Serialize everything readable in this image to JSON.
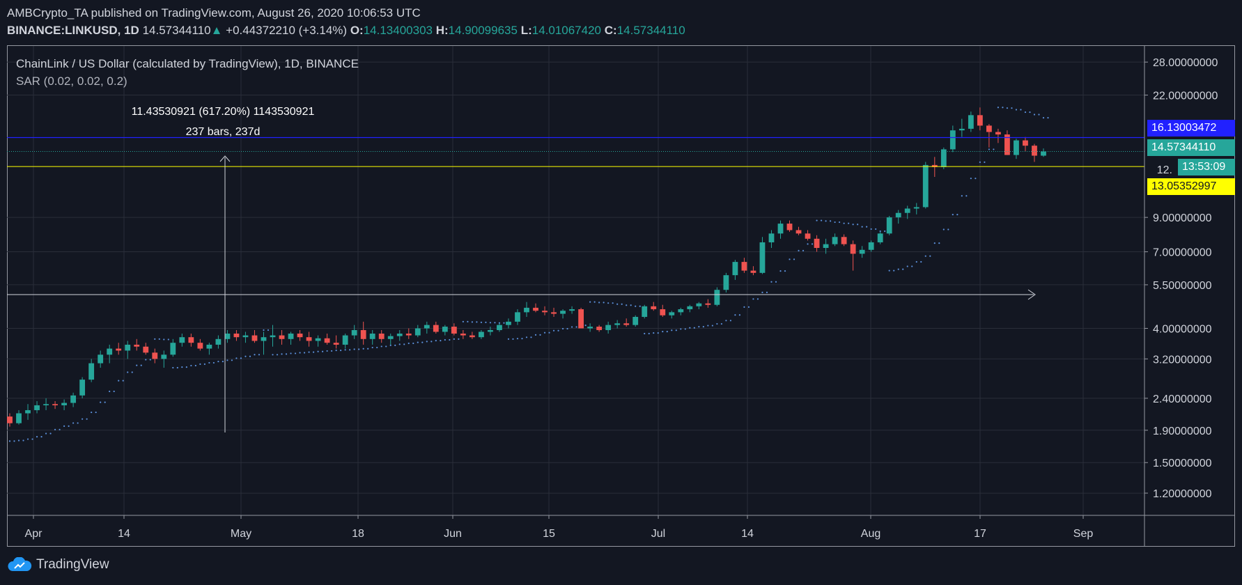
{
  "header": {
    "published": "AMBCrypto_TA published on TradingView.com, August 26, 2020 10:06:53 UTC",
    "symbol": "BINANCE:LINKUSD, 1D",
    "last": "14.57344110",
    "change": "+0.44372210 (+3.14%)",
    "o_label": "O:",
    "o": "14.13400303",
    "h_label": "H:",
    "h": "14.90099635",
    "l_label": "L:",
    "l": "14.01067420",
    "c_label": "C:",
    "c": "14.57344110"
  },
  "legend": {
    "title": "ChainLink / US Dollar (calculated by TradingView), 1D, BINANCE",
    "indicator": "SAR (0.02, 0.02, 0.2)"
  },
  "measure": {
    "line1": "11.43530921 (617.20%) 1143530921",
    "line2": "237 bars, 237d"
  },
  "badges": {
    "blue_line": "16.13003472",
    "last_price": "14.57344110",
    "countdown": "13:53:09",
    "partial": "12.",
    "yellow_line": "13.05352997"
  },
  "brand": "TradingView",
  "colors": {
    "up": "#26a69a",
    "down": "#ef5350",
    "blue": "#2121ff",
    "yellow": "#ffff00",
    "sar": "#5b8fd9"
  },
  "chart_data": {
    "type": "candlestick",
    "title": "ChainLink / US Dollar (calculated by TradingView), 1D, BINANCE",
    "y_scale": "log",
    "ylim": [
      1.02,
      31.5
    ],
    "y_ticks": [
      "28.00000000",
      "22.00000000",
      "9.00000000",
      "7.00000000",
      "5.50000000",
      "4.00000000",
      "3.20000000",
      "2.40000000",
      "1.90000000",
      "1.50000000",
      "1.20000000"
    ],
    "x_ticks": [
      "Apr",
      "14",
      "May",
      "18",
      "Jun",
      "15",
      "Jul",
      "14",
      "Aug",
      "17",
      "Sep"
    ],
    "horizontal_lines": [
      {
        "value": 16.13003472,
        "color": "blue"
      },
      {
        "value": 13.05352997,
        "color": "yellow"
      },
      {
        "value": 14.5734411,
        "color": "teal-dotted"
      }
    ],
    "candles_approx": [
      [
        2.1,
        2.15,
        1.95,
        2.0
      ],
      [
        2.0,
        2.2,
        1.98,
        2.15
      ],
      [
        2.15,
        2.3,
        2.05,
        2.2
      ],
      [
        2.2,
        2.35,
        2.15,
        2.28
      ],
      [
        2.28,
        2.4,
        2.2,
        2.3
      ],
      [
        2.3,
        2.35,
        2.22,
        2.28
      ],
      [
        2.28,
        2.38,
        2.2,
        2.32
      ],
      [
        2.32,
        2.5,
        2.25,
        2.45
      ],
      [
        2.45,
        2.8,
        2.4,
        2.75
      ],
      [
        2.75,
        3.2,
        2.7,
        3.1
      ],
      [
        3.1,
        3.4,
        3.0,
        3.3
      ],
      [
        3.3,
        3.55,
        3.1,
        3.45
      ],
      [
        3.45,
        3.6,
        3.3,
        3.4
      ],
      [
        3.4,
        3.65,
        3.2,
        3.55
      ],
      [
        3.55,
        3.7,
        3.4,
        3.5
      ],
      [
        3.5,
        3.6,
        3.3,
        3.35
      ],
      [
        3.35,
        3.45,
        3.1,
        3.2
      ],
      [
        3.2,
        3.4,
        3.0,
        3.3
      ],
      [
        3.3,
        3.7,
        3.25,
        3.6
      ],
      [
        3.6,
        3.85,
        3.5,
        3.75
      ],
      [
        3.75,
        3.85,
        3.5,
        3.6
      ],
      [
        3.6,
        3.7,
        3.4,
        3.45
      ],
      [
        3.45,
        3.6,
        3.3,
        3.55
      ],
      [
        3.55,
        3.8,
        3.45,
        3.7
      ],
      [
        3.7,
        3.95,
        3.6,
        3.85
      ],
      [
        3.85,
        3.95,
        3.65,
        3.75
      ],
      [
        3.75,
        3.9,
        3.6,
        3.8
      ],
      [
        3.8,
        3.95,
        3.6,
        3.65
      ],
      [
        3.65,
        3.9,
        3.3,
        3.75
      ],
      [
        3.75,
        4.1,
        3.5,
        3.8
      ],
      [
        3.8,
        3.95,
        3.55,
        3.7
      ],
      [
        3.7,
        3.9,
        3.55,
        3.85
      ],
      [
        3.85,
        3.95,
        3.65,
        3.75
      ],
      [
        3.75,
        3.9,
        3.5,
        3.65
      ],
      [
        3.65,
        3.8,
        3.5,
        3.72
      ],
      [
        3.72,
        3.85,
        3.55,
        3.6
      ],
      [
        3.6,
        3.8,
        3.45,
        3.55
      ],
      [
        3.55,
        3.85,
        3.45,
        3.8
      ],
      [
        3.8,
        4.1,
        3.7,
        3.95
      ],
      [
        3.95,
        4.2,
        3.55,
        3.7
      ],
      [
        3.7,
        3.95,
        3.55,
        3.85
      ],
      [
        3.85,
        3.95,
        3.6,
        3.7
      ],
      [
        3.7,
        3.85,
        3.55,
        3.78
      ],
      [
        3.78,
        3.95,
        3.65,
        3.85
      ],
      [
        3.85,
        4.0,
        3.7,
        3.8
      ],
      [
        3.8,
        4.1,
        3.75,
        4.0
      ],
      [
        4.0,
        4.2,
        3.85,
        4.1
      ],
      [
        4.1,
        4.2,
        3.85,
        3.9
      ],
      [
        3.9,
        4.1,
        3.8,
        4.05
      ],
      [
        4.05,
        4.15,
        3.8,
        3.85
      ],
      [
        3.85,
        3.95,
        3.7,
        3.8
      ],
      [
        3.8,
        3.9,
        3.7,
        3.75
      ],
      [
        3.75,
        3.95,
        3.7,
        3.9
      ],
      [
        3.9,
        4.05,
        3.8,
        3.95
      ],
      [
        3.95,
        4.15,
        3.9,
        4.1
      ],
      [
        4.1,
        4.3,
        4.0,
        4.2
      ],
      [
        4.2,
        4.6,
        4.1,
        4.5
      ],
      [
        4.5,
        4.85,
        4.35,
        4.65
      ],
      [
        4.65,
        4.8,
        4.5,
        4.55
      ],
      [
        4.55,
        4.7,
        4.4,
        4.5
      ],
      [
        4.5,
        4.65,
        4.35,
        4.45
      ],
      [
        4.45,
        4.6,
        4.3,
        4.55
      ],
      [
        4.55,
        4.7,
        4.45,
        4.6
      ],
      [
        4.6,
        4.65,
        4.1,
        4.0
      ],
      [
        4.0,
        4.15,
        3.9,
        4.05
      ],
      [
        4.05,
        4.1,
        3.9,
        3.95
      ],
      [
        3.95,
        4.2,
        3.85,
        4.1
      ],
      [
        4.1,
        4.25,
        4.0,
        4.15
      ],
      [
        4.15,
        4.3,
        4.05,
        4.1
      ],
      [
        4.1,
        4.4,
        4.05,
        4.35
      ],
      [
        4.35,
        4.75,
        4.3,
        4.7
      ],
      [
        4.7,
        4.85,
        4.55,
        4.6
      ],
      [
        4.6,
        4.75,
        4.35,
        4.4
      ],
      [
        4.4,
        4.55,
        4.3,
        4.5
      ],
      [
        4.5,
        4.65,
        4.4,
        4.6
      ],
      [
        4.6,
        4.75,
        4.5,
        4.7
      ],
      [
        4.7,
        4.85,
        4.6,
        4.8
      ],
      [
        4.8,
        4.95,
        4.65,
        4.75
      ],
      [
        4.75,
        5.4,
        4.7,
        5.3
      ],
      [
        5.3,
        6.0,
        5.2,
        5.9
      ],
      [
        5.9,
        6.6,
        5.7,
        6.5
      ],
      [
        6.5,
        6.7,
        6.0,
        6.1
      ],
      [
        6.1,
        6.3,
        5.9,
        6.0
      ],
      [
        6.0,
        7.8,
        5.95,
        7.5
      ],
      [
        7.5,
        8.2,
        7.2,
        8.0
      ],
      [
        8.0,
        8.8,
        7.7,
        8.6
      ],
      [
        8.6,
        8.8,
        8.1,
        8.2
      ],
      [
        8.2,
        8.4,
        7.9,
        8.0
      ],
      [
        8.0,
        8.2,
        7.6,
        7.7
      ],
      [
        7.7,
        7.9,
        7.0,
        7.2
      ],
      [
        7.2,
        7.7,
        6.9,
        7.4
      ],
      [
        7.4,
        8.0,
        7.3,
        7.8
      ],
      [
        7.8,
        7.95,
        7.3,
        7.4
      ],
      [
        7.4,
        7.6,
        6.1,
        6.9
      ],
      [
        6.9,
        7.3,
        6.7,
        7.1
      ],
      [
        7.1,
        7.6,
        7.0,
        7.5
      ],
      [
        7.5,
        8.1,
        7.4,
        8.0
      ],
      [
        8.0,
        9.1,
        7.9,
        9.0
      ],
      [
        9.0,
        9.5,
        8.6,
        9.3
      ],
      [
        9.3,
        9.8,
        8.9,
        9.6
      ],
      [
        9.6,
        10.0,
        9.2,
        9.7
      ],
      [
        9.7,
        13.5,
        9.6,
        13.2
      ],
      [
        13.2,
        14.0,
        12.1,
        13.0
      ],
      [
        13.0,
        15.0,
        12.8,
        14.8
      ],
      [
        14.8,
        17.6,
        14.5,
        17.0
      ],
      [
        17.0,
        18.5,
        16.2,
        17.2
      ],
      [
        17.2,
        19.5,
        16.8,
        19.0
      ],
      [
        19.0,
        20.1,
        17.0,
        17.6
      ],
      [
        17.6,
        17.8,
        15.0,
        16.8
      ],
      [
        16.8,
        17.2,
        15.5,
        16.5
      ],
      [
        16.5,
        17.0,
        14.2,
        14.2
      ],
      [
        14.2,
        16.0,
        13.8,
        15.8
      ],
      [
        15.8,
        16.2,
        14.6,
        15.2
      ],
      [
        15.2,
        15.4,
        13.5,
        14.13
      ],
      [
        14.13,
        14.9,
        14.01,
        14.57
      ]
    ]
  }
}
